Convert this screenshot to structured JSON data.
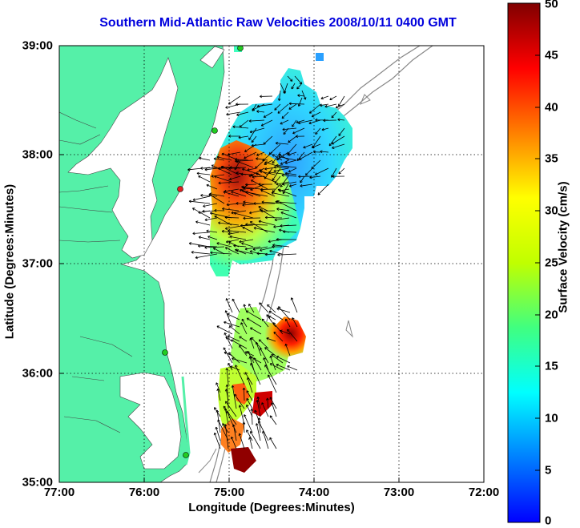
{
  "title": "Southern Mid-Atlantic Raw Velocities 2008/10/11 0400 GMT",
  "axes": {
    "xlabel": "Longitude (Degrees:Minutes)",
    "ylabel": "Latitude (Degrees:Minutes)",
    "x_ticks": [
      "77:00",
      "76:00",
      "75:00",
      "74:00",
      "73:00",
      "72:00"
    ],
    "y_ticks": [
      "39:00",
      "38:00",
      "37:00",
      "36:00",
      "35:00"
    ],
    "xlim": [
      -77,
      -72
    ],
    "ylim": [
      35,
      39
    ],
    "grid": "dotted"
  },
  "colorbar": {
    "label": "Surface Velocity (cm/s)",
    "ticks": [
      "50",
      "45",
      "40",
      "35",
      "30",
      "25",
      "20",
      "15",
      "10",
      "5",
      "0"
    ],
    "range": [
      0,
      50
    ],
    "colormap": "jet"
  },
  "colors": {
    "land": "#55f0a8",
    "title": "#0000dd",
    "bathymetry": "#888888",
    "station_green": "#22cc22",
    "station_red": "#dd2222"
  }
}
